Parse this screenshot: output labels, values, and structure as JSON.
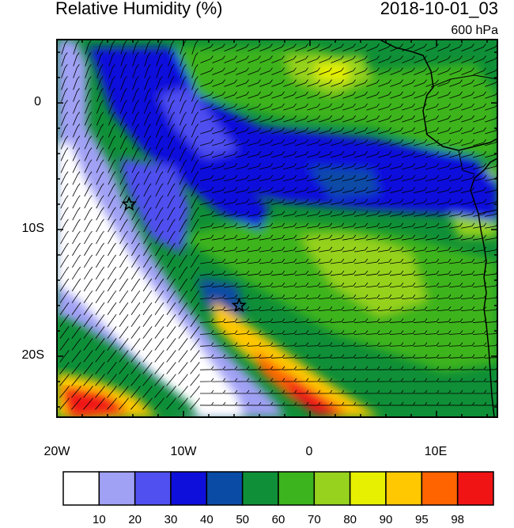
{
  "title": "Relative Humidity (%)",
  "timestamp": "2018-10-01_03",
  "level": "600 hPa",
  "axes": {
    "lat_ticks": [
      {
        "label": "0",
        "value": 0
      },
      {
        "label": "10S",
        "value": -10
      },
      {
        "label": "20S",
        "value": -20
      }
    ],
    "lon_ticks": [
      {
        "label": "20W",
        "value": -20
      },
      {
        "label": "10W",
        "value": -10
      },
      {
        "label": "0",
        "value": 0
      },
      {
        "label": "10E",
        "value": 10
      }
    ]
  },
  "colorbar": {
    "colors": [
      "#ffffff",
      "#a0a0f5",
      "#5050f0",
      "#0f0fdc",
      "#0a4ba5",
      "#0f8f37",
      "#3cb41e",
      "#96d21e",
      "#e6f000",
      "#ffc800",
      "#ff6400",
      "#f01414"
    ],
    "labels": [
      "10",
      "20",
      "30",
      "40",
      "50",
      "60",
      "70",
      "80",
      "90",
      "95",
      "98"
    ]
  },
  "markers": [
    {
      "name": "star-marker-west",
      "lon": -14.3,
      "lat": -8
    },
    {
      "name": "star-marker-south",
      "lon": -5.6,
      "lat": -16
    }
  ]
}
